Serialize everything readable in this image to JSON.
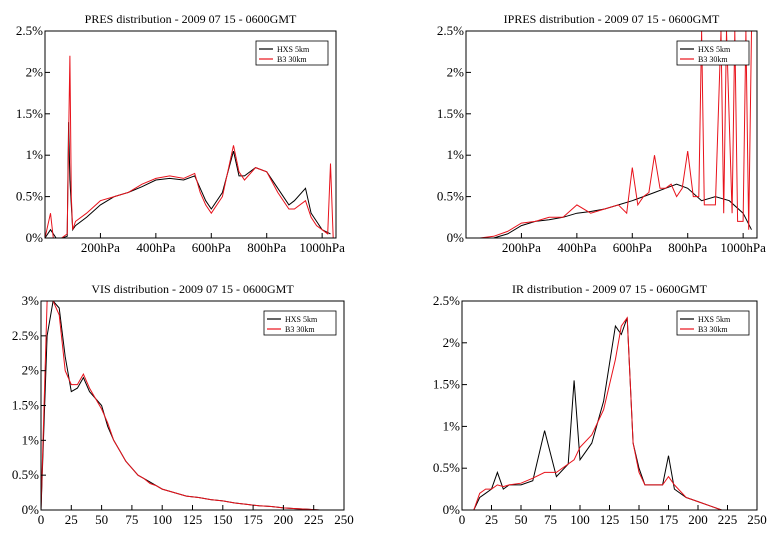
{
  "colors": {
    "hxs": "#000000",
    "b3": "#e8121b",
    "axis": "#000000"
  },
  "chart_data": [
    {
      "type": "line",
      "title": "PRES distribution - 2009 07 15  - 0600GMT",
      "xlim": [
        0,
        1050
      ],
      "ylim": [
        0,
        2.5
      ],
      "x_ticks": [
        200,
        400,
        600,
        800,
        1000
      ],
      "x_tick_labels": [
        "200hPa",
        "400hPa",
        "600hPa",
        "800hPa",
        "1000hPa"
      ],
      "y_ticks": [
        0,
        0.5,
        1,
        1.5,
        2,
        2.5
      ],
      "y_tick_labels": [
        "0%",
        "0.5%",
        "1%",
        "1.5%",
        "2%",
        "2.5%"
      ],
      "legend": "top-right",
      "series": [
        {
          "name": "HXS 5km",
          "x": [
            0,
            20,
            40,
            60,
            80,
            85,
            90,
            100,
            110,
            150,
            200,
            250,
            300,
            350,
            400,
            450,
            500,
            540,
            560,
            580,
            600,
            640,
            680,
            700,
            720,
            760,
            800,
            840,
            880,
            900,
            940,
            960,
            980,
            1000,
            1030
          ],
          "y": [
            0,
            0.1,
            0,
            0,
            0.02,
            1.4,
            0.7,
            0.1,
            0.15,
            0.25,
            0.4,
            0.5,
            0.55,
            0.62,
            0.7,
            0.72,
            0.7,
            0.75,
            0.6,
            0.45,
            0.35,
            0.55,
            1.05,
            0.75,
            0.75,
            0.85,
            0.8,
            0.6,
            0.4,
            0.45,
            0.6,
            0.3,
            0.2,
            0.1,
            0.05
          ]
        },
        {
          "name": "B3 30km",
          "x": [
            0,
            20,
            30,
            40,
            60,
            80,
            85,
            90,
            95,
            100,
            110,
            150,
            200,
            250,
            300,
            350,
            400,
            450,
            500,
            540,
            560,
            580,
            600,
            640,
            680,
            700,
            720,
            760,
            800,
            840,
            880,
            900,
            940,
            960,
            980,
            1000,
            1020,
            1030,
            1040
          ],
          "y": [
            0,
            0.3,
            0,
            0,
            0,
            0.05,
            1.2,
            2.2,
            0.5,
            0.1,
            0.2,
            0.3,
            0.45,
            0.5,
            0.55,
            0.65,
            0.72,
            0.75,
            0.72,
            0.78,
            0.55,
            0.4,
            0.3,
            0.5,
            1.12,
            0.8,
            0.7,
            0.85,
            0.8,
            0.55,
            0.35,
            0.35,
            0.45,
            0.25,
            0.15,
            0.1,
            0.05,
            0.9,
            0
          ]
        }
      ]
    },
    {
      "type": "line",
      "title": "IPRES distribution - 2009 07 15  - 0600GMT",
      "xlim": [
        0,
        1050
      ],
      "ylim": [
        0,
        2.5
      ],
      "x_ticks": [
        200,
        400,
        600,
        800,
        1000
      ],
      "x_tick_labels": [
        "200hPa",
        "400hPa",
        "600hPa",
        "800hPa",
        "1000hPa"
      ],
      "y_ticks": [
        0,
        0.5,
        1,
        1.5,
        2,
        2.5
      ],
      "y_tick_labels": [
        "0%",
        "0.5%",
        "1%",
        "1.5%",
        "2%",
        "2.5%"
      ],
      "legend": "top-right",
      "series": [
        {
          "name": "HXS 5km",
          "x": [
            0,
            50,
            100,
            150,
            200,
            250,
            300,
            350,
            400,
            450,
            500,
            550,
            600,
            640,
            680,
            720,
            760,
            800,
            850,
            900,
            950,
            1000,
            1030
          ],
          "y": [
            0,
            0,
            0,
            0.05,
            0.15,
            0.2,
            0.22,
            0.25,
            0.3,
            0.32,
            0.35,
            0.4,
            0.45,
            0.5,
            0.55,
            0.6,
            0.65,
            0.6,
            0.45,
            0.5,
            0.45,
            0.3,
            0.1
          ]
        },
        {
          "name": "B3 30km",
          "x": [
            0,
            50,
            100,
            150,
            200,
            250,
            300,
            350,
            400,
            450,
            500,
            550,
            580,
            600,
            620,
            640,
            660,
            680,
            700,
            720,
            740,
            760,
            780,
            800,
            820,
            840,
            850,
            860,
            880,
            900,
            920,
            930,
            940,
            960,
            970,
            980,
            1000,
            1010,
            1020,
            1030
          ],
          "y": [
            0,
            0,
            0.02,
            0.08,
            0.18,
            0.2,
            0.25,
            0.25,
            0.4,
            0.3,
            0.35,
            0.4,
            0.3,
            0.85,
            0.4,
            0.5,
            0.55,
            1.0,
            0.6,
            0.6,
            0.65,
            0.5,
            0.6,
            1.05,
            0.5,
            0.5,
            2.5,
            0.4,
            0.4,
            0.4,
            2.5,
            0.3,
            2.5,
            0.3,
            2.5,
            0.2,
            0.2,
            2.5,
            0.1,
            2.5
          ]
        }
      ]
    },
    {
      "type": "line",
      "title": "VIS distribution - 2009 07 15  - 0600GMT",
      "xlim": [
        0,
        250
      ],
      "ylim": [
        0,
        3
      ],
      "x_ticks": [
        0,
        25,
        50,
        75,
        100,
        125,
        150,
        175,
        200,
        225,
        250
      ],
      "x_tick_labels": [
        "0",
        "25",
        "50",
        "75",
        "100",
        "125",
        "150",
        "175",
        "200",
        "225",
        "250"
      ],
      "y_ticks": [
        0,
        0.5,
        1,
        1.5,
        2,
        2.5,
        3
      ],
      "y_tick_labels": [
        "0%",
        "0.5%",
        "1%",
        "1.5%",
        "2%",
        "2.5%",
        "3%"
      ],
      "legend": "top-right",
      "series": [
        {
          "name": "HXS 5km",
          "x": [
            0,
            5,
            10,
            15,
            20,
            25,
            30,
            35,
            40,
            45,
            50,
            55,
            60,
            65,
            70,
            75,
            80,
            85,
            90,
            95,
            100,
            110,
            120,
            130,
            140,
            150,
            160,
            170,
            180,
            190,
            200,
            210,
            220,
            230
          ],
          "y": [
            0,
            2.5,
            3.0,
            2.9,
            2.2,
            1.7,
            1.75,
            1.9,
            1.7,
            1.6,
            1.5,
            1.2,
            1.0,
            0.85,
            0.7,
            0.6,
            0.5,
            0.45,
            0.4,
            0.35,
            0.3,
            0.25,
            0.2,
            0.18,
            0.15,
            0.13,
            0.1,
            0.08,
            0.06,
            0.05,
            0.03,
            0.02,
            0.01,
            0
          ]
        },
        {
          "name": "B3 30km",
          "x": [
            0,
            5,
            10,
            15,
            20,
            25,
            30,
            35,
            40,
            45,
            50,
            55,
            60,
            65,
            70,
            75,
            80,
            85,
            90,
            95,
            100,
            110,
            120,
            130,
            140,
            150,
            160,
            170,
            180,
            190,
            200,
            210,
            220,
            230
          ],
          "y": [
            0,
            3.0,
            3.0,
            2.8,
            2.0,
            1.8,
            1.8,
            1.95,
            1.75,
            1.6,
            1.45,
            1.25,
            1.0,
            0.85,
            0.7,
            0.6,
            0.5,
            0.45,
            0.38,
            0.35,
            0.3,
            0.25,
            0.2,
            0.18,
            0.15,
            0.13,
            0.1,
            0.08,
            0.06,
            0.05,
            0.03,
            0.02,
            0.01,
            0
          ]
        }
      ]
    },
    {
      "type": "line",
      "title": "IR distribution - 2009 07 15  - 0600GMT",
      "xlim": [
        0,
        250
      ],
      "ylim": [
        0,
        2.5
      ],
      "x_ticks": [
        0,
        25,
        50,
        75,
        100,
        125,
        150,
        175,
        200,
        225,
        250
      ],
      "x_tick_labels": [
        "0",
        "25",
        "50",
        "75",
        "100",
        "125",
        "150",
        "175",
        "200",
        "225",
        "250"
      ],
      "y_ticks": [
        0,
        0.5,
        1,
        1.5,
        2,
        2.5
      ],
      "y_tick_labels": [
        "0%",
        "0.5%",
        "1%",
        "1.5%",
        "2%",
        "2.5%"
      ],
      "legend": "top-right",
      "series": [
        {
          "name": "HXS 5km",
          "x": [
            10,
            15,
            20,
            25,
            30,
            35,
            40,
            50,
            60,
            70,
            80,
            90,
            95,
            100,
            110,
            120,
            130,
            135,
            140,
            145,
            150,
            155,
            160,
            170,
            175,
            180,
            190,
            200,
            210,
            220
          ],
          "y": [
            0,
            0.15,
            0.2,
            0.25,
            0.45,
            0.25,
            0.3,
            0.3,
            0.35,
            0.95,
            0.4,
            0.55,
            1.55,
            0.6,
            0.8,
            1.3,
            2.2,
            2.1,
            2.3,
            0.8,
            0.5,
            0.3,
            0.3,
            0.3,
            0.65,
            0.25,
            0.15,
            0.1,
            0.05,
            0
          ]
        },
        {
          "name": "B3 30km",
          "x": [
            10,
            15,
            20,
            25,
            30,
            35,
            40,
            50,
            60,
            70,
            80,
            90,
            95,
            100,
            110,
            120,
            130,
            135,
            140,
            145,
            150,
            155,
            160,
            170,
            175,
            180,
            190,
            200,
            210,
            220
          ],
          "y": [
            0,
            0.2,
            0.25,
            0.25,
            0.3,
            0.28,
            0.3,
            0.32,
            0.38,
            0.45,
            0.45,
            0.55,
            0.6,
            0.75,
            0.9,
            1.2,
            1.8,
            2.2,
            2.3,
            0.8,
            0.45,
            0.3,
            0.3,
            0.3,
            0.4,
            0.3,
            0.15,
            0.1,
            0.05,
            0
          ]
        }
      ]
    }
  ]
}
